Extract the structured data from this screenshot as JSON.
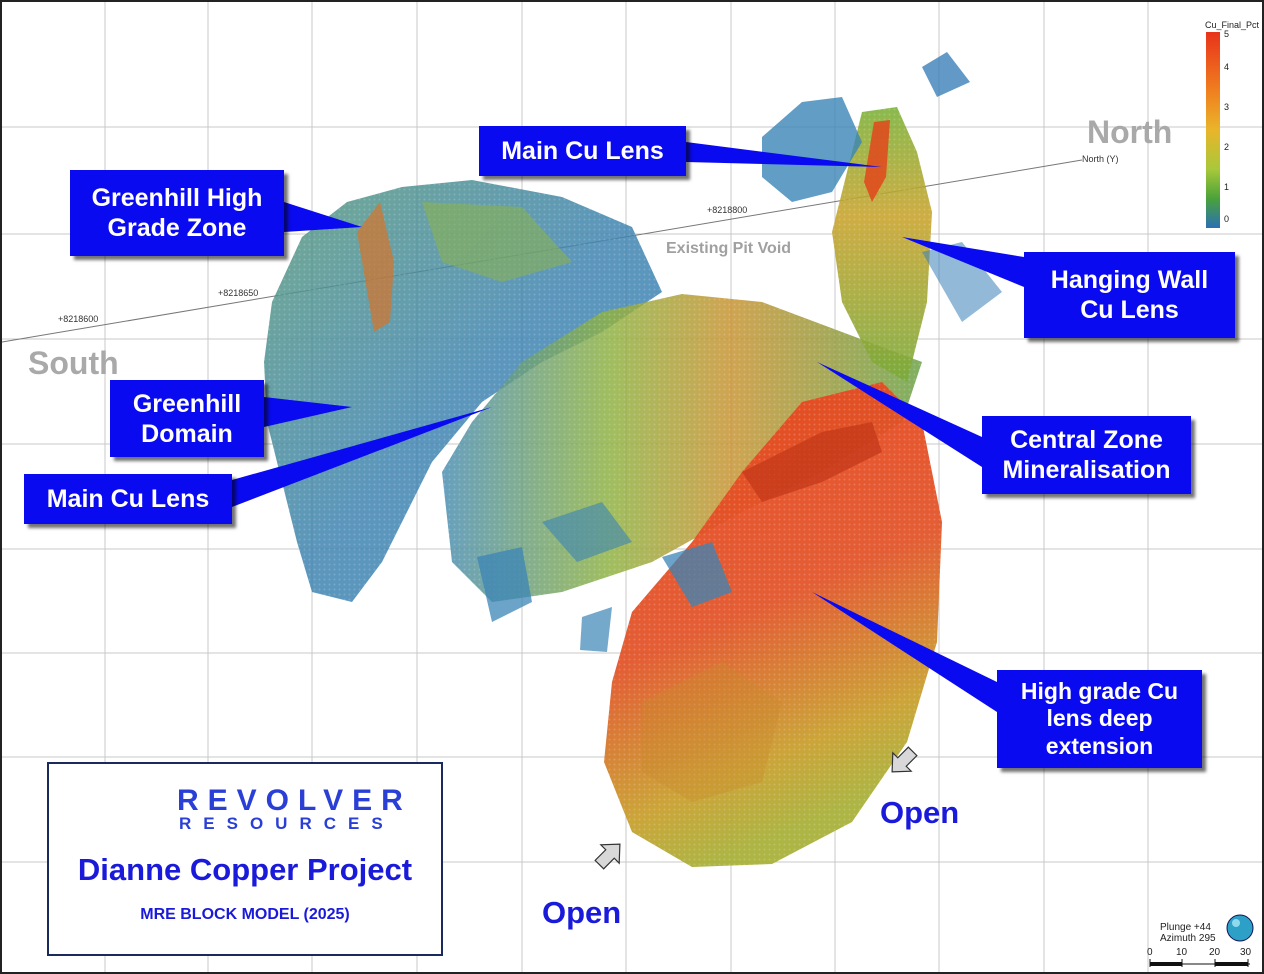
{
  "callouts": {
    "main_cu_lens_top": "Main Cu Lens",
    "greenhill_high_grade": "Greenhill High\nGrade Zone",
    "hanging_wall": "Hanging Wall\nCu Lens",
    "greenhill_domain": "Greenhill\nDomain",
    "central_zone": "Central Zone\nMineralisation",
    "main_cu_lens_left": "Main Cu Lens",
    "high_grade_deep": "High grade Cu\nlens deep\nextension"
  },
  "directions": {
    "north": "North",
    "south": "South"
  },
  "open_labels": {
    "right": "Open",
    "bottom": "Open"
  },
  "pit_label": "Existing Pit Void",
  "axis": {
    "north_y_label": "North (Y)",
    "coords": [
      "+8218600",
      "+8218650",
      "+8218800"
    ]
  },
  "legend": {
    "title": "Cu_Final_Pct",
    "ticks": [
      "5",
      "4",
      "3",
      "2",
      "1",
      "0"
    ],
    "colors": [
      "#e8331a",
      "#f07f1f",
      "#e9b52a",
      "#a8c83a",
      "#4aa23a",
      "#2a6fb5"
    ]
  },
  "logo": {
    "name": "REVOLVER",
    "sub": "RESOURCES",
    "project": "Dianne Copper Project",
    "subtitle": "MRE BLOCK MODEL (2025)"
  },
  "orientation": {
    "plunge": "Plunge +44",
    "azimuth": "Azimuth 295",
    "scale_ticks": [
      "0",
      "10",
      "20",
      "30"
    ]
  }
}
